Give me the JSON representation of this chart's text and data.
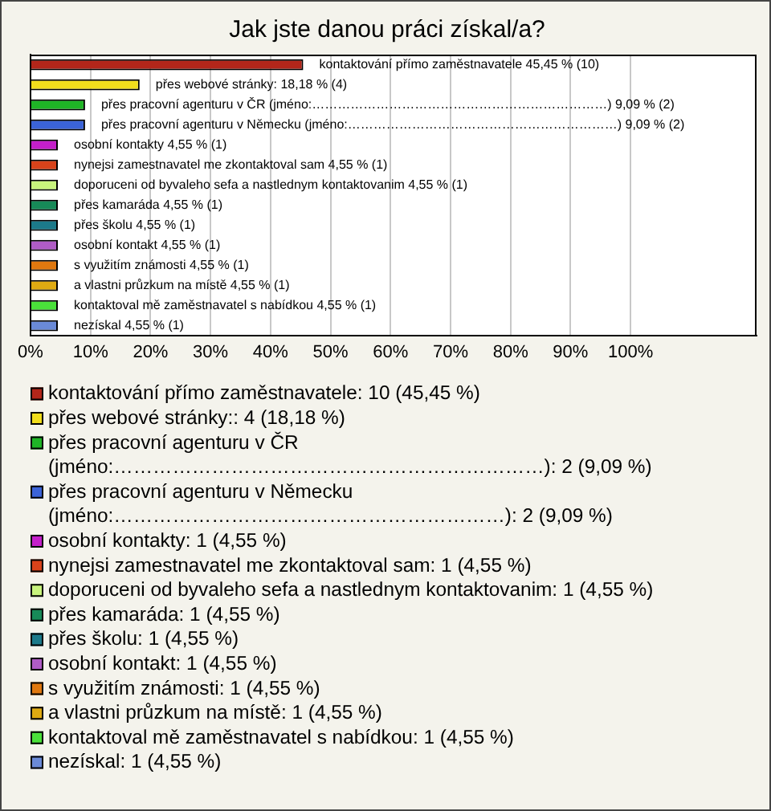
{
  "chart_data": {
    "type": "bar",
    "orientation": "horizontal",
    "stacked": true,
    "title": "Jak jste danou práci získal/a?",
    "categories": [
      null,
      null,
      null,
      null,
      null,
      null,
      null,
      null,
      null,
      null,
      null,
      null,
      null,
      null
    ],
    "series": [
      {
        "name": "kontaktování přímo zaměstnavatele: 10 (45,45 %)",
        "color": "#b3261a",
        "values": [
          45.45,
          null,
          null,
          null,
          null,
          null,
          null,
          null,
          null,
          null,
          null,
          null,
          null,
          null
        ],
        "value_labels": [
          "kontaktování přímo zaměstnavatele 45,45 % (10)",
          null,
          null,
          null,
          null,
          null,
          null,
          null,
          null,
          null,
          null,
          null,
          null,
          null
        ]
      },
      {
        "name": "přes webové stránky:: 4 (18,18 %)",
        "color": "#f2de1c",
        "values": [
          null,
          18.18,
          null,
          null,
          null,
          null,
          null,
          null,
          null,
          null,
          null,
          null,
          null,
          null
        ],
        "value_labels": [
          null,
          "přes webové stránky: 18,18 % (4)",
          null,
          null,
          null,
          null,
          null,
          null,
          null,
          null,
          null,
          null,
          null,
          null
        ]
      },
      {
        "name": "přes pracovní agenturu v ČR (jméno:…………………………………………………………): 2 (9,09 %)",
        "color": "#1fb526",
        "values": [
          null,
          null,
          9.09,
          null,
          null,
          null,
          null,
          null,
          null,
          null,
          null,
          null,
          null,
          null
        ],
        "value_labels": [
          null,
          null,
          "přes pracovní agenturu v ČR (jméno:……………………………………………………………) 9,09 % (2)",
          null,
          null,
          null,
          null,
          null,
          null,
          null,
          null,
          null,
          null,
          null
        ]
      },
      {
        "name": "přes pracovní agenturu v Německu (jméno:……………………………………………………): 2 (9,09 %)",
        "color": "#3b63d8",
        "values": [
          null,
          null,
          null,
          9.09,
          null,
          null,
          null,
          null,
          null,
          null,
          null,
          null,
          null,
          null
        ],
        "value_labels": [
          null,
          null,
          null,
          "přes pracovní agenturu v Německu (jméno:………………………………………………………) 9,09 % (2)",
          null,
          null,
          null,
          null,
          null,
          null,
          null,
          null,
          null,
          null
        ]
      },
      {
        "name": "osobní kontakty: 1 (4,55 %)",
        "color": "#c41fca",
        "values": [
          null,
          null,
          null,
          null,
          4.55,
          null,
          null,
          null,
          null,
          null,
          null,
          null,
          null,
          null
        ],
        "value_labels": [
          null,
          null,
          null,
          null,
          "osobní kontakty 4,55 % (1)",
          null,
          null,
          null,
          null,
          null,
          null,
          null,
          null,
          null
        ]
      },
      {
        "name": "nynejsi zamestnavatel me zkontaktoval sam: 1 (4,55 %)",
        "color": "#d8431b",
        "values": [
          null,
          null,
          null,
          null,
          null,
          4.55,
          null,
          null,
          null,
          null,
          null,
          null,
          null,
          null
        ],
        "value_labels": [
          null,
          null,
          null,
          null,
          null,
          "nynejsi zamestnavatel me zkontaktoval sam 4,55 % (1)",
          null,
          null,
          null,
          null,
          null,
          null,
          null,
          null
        ]
      },
      {
        "name": "doporuceni od byvaleho sefa a nastlednym kontaktovanim: 1 (4,55 %)",
        "color": "#c8f47c",
        "values": [
          null,
          null,
          null,
          null,
          null,
          null,
          4.55,
          null,
          null,
          null,
          null,
          null,
          null,
          null
        ],
        "value_labels": [
          null,
          null,
          null,
          null,
          null,
          null,
          "doporuceni od byvaleho sefa a nastlednym kontaktovanim 4,55 % (1)",
          null,
          null,
          null,
          null,
          null,
          null,
          null
        ]
      },
      {
        "name": "přes kamaráda: 1 (4,55 %)",
        "color": "#178a58",
        "values": [
          null,
          null,
          null,
          null,
          null,
          null,
          null,
          4.55,
          null,
          null,
          null,
          null,
          null,
          null
        ],
        "value_labels": [
          null,
          null,
          null,
          null,
          null,
          null,
          null,
          "přes kamaráda 4,55 % (1)",
          null,
          null,
          null,
          null,
          null,
          null
        ]
      },
      {
        "name": "přes školu: 1 (4,55 %)",
        "color": "#1c7a8a",
        "values": [
          null,
          null,
          null,
          null,
          null,
          null,
          null,
          null,
          4.55,
          null,
          null,
          null,
          null,
          null
        ],
        "value_labels": [
          null,
          null,
          null,
          null,
          null,
          null,
          null,
          null,
          "přes školu 4,55 % (1)",
          null,
          null,
          null,
          null,
          null
        ]
      },
      {
        "name": "osobní kontakt: 1 (4,55 %)",
        "color": "#b05cc6",
        "values": [
          null,
          null,
          null,
          null,
          null,
          null,
          null,
          null,
          null,
          4.55,
          null,
          null,
          null,
          null
        ],
        "value_labels": [
          null,
          null,
          null,
          null,
          null,
          null,
          null,
          null,
          null,
          "osobní kontakt 4,55 % (1)",
          null,
          null,
          null,
          null
        ]
      },
      {
        "name": "s využitím známosti: 1 (4,55 %)",
        "color": "#e0780f",
        "values": [
          null,
          null,
          null,
          null,
          null,
          null,
          null,
          null,
          null,
          null,
          4.55,
          null,
          null,
          null
        ],
        "value_labels": [
          null,
          null,
          null,
          null,
          null,
          null,
          null,
          null,
          null,
          null,
          "s využitím známosti 4,55 % (1)",
          null,
          null,
          null
        ]
      },
      {
        "name": "a vlastni průzkum na místě: 1 (4,55 %)",
        "color": "#dfaa12",
        "values": [
          null,
          null,
          null,
          null,
          null,
          null,
          null,
          null,
          null,
          null,
          null,
          4.55,
          null,
          null
        ],
        "value_labels": [
          null,
          null,
          null,
          null,
          null,
          null,
          null,
          null,
          null,
          null,
          null,
          "a vlastni průzkum na místě 4,55 % (1)",
          null,
          null
        ]
      },
      {
        "name": "kontaktoval mě zaměstnavatel s nabídkou: 1 (4,55 %)",
        "color": "#4ae23a",
        "values": [
          null,
          null,
          null,
          null,
          null,
          null,
          null,
          null,
          null,
          null,
          null,
          null,
          4.55,
          null
        ],
        "value_labels": [
          null,
          null,
          null,
          null,
          null,
          null,
          null,
          null,
          null,
          null,
          null,
          null,
          "kontaktoval mě zaměstnavatel s nabídkou 4,55 % (1)",
          null
        ]
      },
      {
        "name": "nezískal: 1 (4,55 %)",
        "color": "#6a8ad8",
        "values": [
          null,
          null,
          null,
          null,
          null,
          null,
          null,
          null,
          null,
          null,
          null,
          null,
          null,
          4.55
        ],
        "value_labels": [
          null,
          null,
          null,
          null,
          null,
          null,
          null,
          null,
          null,
          null,
          null,
          null,
          null,
          "nezískal 4,55 % (1)"
        ]
      }
    ],
    "xlim": [
      0,
      121
    ],
    "xticks": [
      {
        "value": 0,
        "label": "0%"
      },
      {
        "value": 10,
        "label": "10%"
      },
      {
        "value": 20,
        "label": "20%"
      },
      {
        "value": 30,
        "label": "30%"
      },
      {
        "value": 40,
        "label": "40%"
      },
      {
        "value": 50,
        "label": "50%"
      },
      {
        "value": 60,
        "label": "60%"
      },
      {
        "value": 70,
        "label": "70%"
      },
      {
        "value": 80,
        "label": "80%"
      },
      {
        "value": 90,
        "label": "90%"
      },
      {
        "value": 100,
        "label": "100%"
      }
    ],
    "grid": "x",
    "legend": "bottom",
    "tick_labels": "x"
  }
}
